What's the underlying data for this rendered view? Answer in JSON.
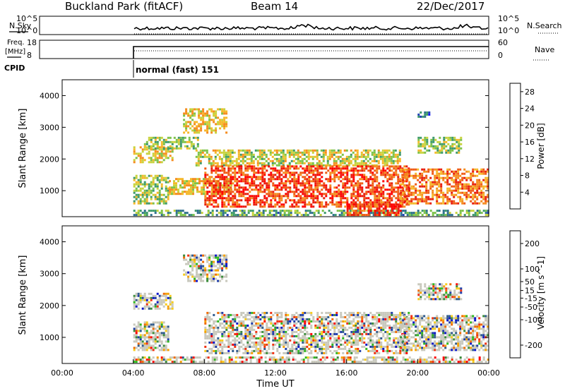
{
  "header": {
    "title": "Buckland Park (fitACF)",
    "beam": "Beam 14",
    "date": "22/Dec/2017"
  },
  "status_panels": {
    "nsky_label": "N.Sky",
    "nsearch_label": "N.Search",
    "freq_label_line1": "Freq.",
    "freq_label_line2": "[MHz]",
    "nave_label": "Nave",
    "cpid_label": "CPID",
    "cpid_text": "normal (fast) 151",
    "noise_ticks": [
      "10^5",
      "10^0"
    ],
    "freq_ticks": [
      "18",
      "8"
    ],
    "nave_ticks": [
      "60",
      "0"
    ]
  },
  "chart_data": [
    {
      "type": "heatmap",
      "name": "power",
      "xlabel": "",
      "ylabel": "Slant Range [km]",
      "xlim": [
        0,
        24
      ],
      "ylim": [
        180,
        4500
      ],
      "yticks": [
        1000,
        2000,
        3000,
        4000
      ],
      "colorbar": {
        "label": "Power [dB]",
        "ticks": [
          4,
          8,
          12,
          16,
          20,
          24,
          28
        ],
        "range": [
          0,
          30
        ],
        "colors": [
          "#1414ff",
          "#1f3fb5",
          "#2e6f8e",
          "#3d9a6a",
          "#7cc24a",
          "#c8d23c",
          "#f5b82a",
          "#f58c1e",
          "#f05a14",
          "#e81e0e",
          "#ff0000"
        ]
      },
      "regions": [
        {
          "t0": 4.0,
          "t1": 24.0,
          "r0": 230,
          "r1": 400,
          "level": 0.35
        },
        {
          "t0": 4.0,
          "t1": 6.0,
          "r0": 600,
          "r1": 1500,
          "level": 0.45
        },
        {
          "t0": 4.0,
          "t1": 6.2,
          "r0": 1900,
          "r1": 2400,
          "level": 0.55
        },
        {
          "t0": 4.6,
          "t1": 7.6,
          "r0": 2300,
          "r1": 2700,
          "level": 0.45
        },
        {
          "t0": 6.0,
          "t1": 9.5,
          "r0": 900,
          "r1": 1400,
          "level": 0.55
        },
        {
          "t0": 6.8,
          "t1": 9.2,
          "r0": 2800,
          "r1": 3600,
          "level": 0.55
        },
        {
          "t0": 7.5,
          "t1": 19.0,
          "r0": 1800,
          "r1": 2300,
          "level": 0.5
        },
        {
          "t0": 8.0,
          "t1": 19.5,
          "r0": 500,
          "r1": 1800,
          "level": 0.82
        },
        {
          "t0": 16.0,
          "t1": 19.0,
          "r0": 230,
          "r1": 600,
          "level": 0.85
        },
        {
          "t0": 19.0,
          "t1": 24.0,
          "r0": 600,
          "r1": 1700,
          "level": 0.72
        },
        {
          "t0": 20.0,
          "t1": 22.5,
          "r0": 2200,
          "r1": 2700,
          "level": 0.45
        },
        {
          "t0": 20.0,
          "t1": 20.6,
          "r0": 3300,
          "r1": 3500,
          "level": 0.2
        }
      ]
    },
    {
      "type": "heatmap",
      "name": "velocity",
      "xlabel": "Time UT",
      "ylabel": "Slant Range [km]",
      "xlim": [
        0,
        24
      ],
      "ylim": [
        180,
        4500
      ],
      "xticks": [
        "00:00",
        "04:00",
        "08:00",
        "12:00",
        "16:00",
        "20:00",
        "00:00"
      ],
      "yticks": [
        1000,
        2000,
        3000,
        4000
      ],
      "colorbar": {
        "label": "Velocity [m s^-1]",
        "ticks": [
          200,
          100,
          50,
          15,
          -15,
          -50,
          -100,
          -200
        ],
        "range": [
          -250,
          250
        ],
        "colors": [
          "#ff0000",
          "#f03010",
          "#f06a00",
          "#f5a000",
          "#f7cc1c",
          "#c8c8bc",
          "#2fb81e",
          "#3a8c3a",
          "#2f5a8c",
          "#1e3ca8",
          "#0a14c8"
        ]
      },
      "regions": [
        {
          "t0": 4.0,
          "t1": 24.0,
          "r0": 230,
          "r1": 400,
          "level": 0.35
        },
        {
          "t0": 4.0,
          "t1": 6.0,
          "r0": 600,
          "r1": 1500,
          "level": 0.5
        },
        {
          "t0": 4.0,
          "t1": 6.2,
          "r0": 1900,
          "r1": 2400,
          "level": 0.6
        },
        {
          "t0": 6.8,
          "t1": 9.2,
          "r0": 2800,
          "r1": 3600,
          "level": 0.6
        },
        {
          "t0": 8.0,
          "t1": 19.5,
          "r0": 500,
          "r1": 1800,
          "level": 0.5
        },
        {
          "t0": 19.0,
          "t1": 24.0,
          "r0": 600,
          "r1": 1700,
          "level": 0.55
        },
        {
          "t0": 20.0,
          "t1": 22.5,
          "r0": 2200,
          "r1": 2700,
          "level": 0.5
        }
      ]
    }
  ]
}
